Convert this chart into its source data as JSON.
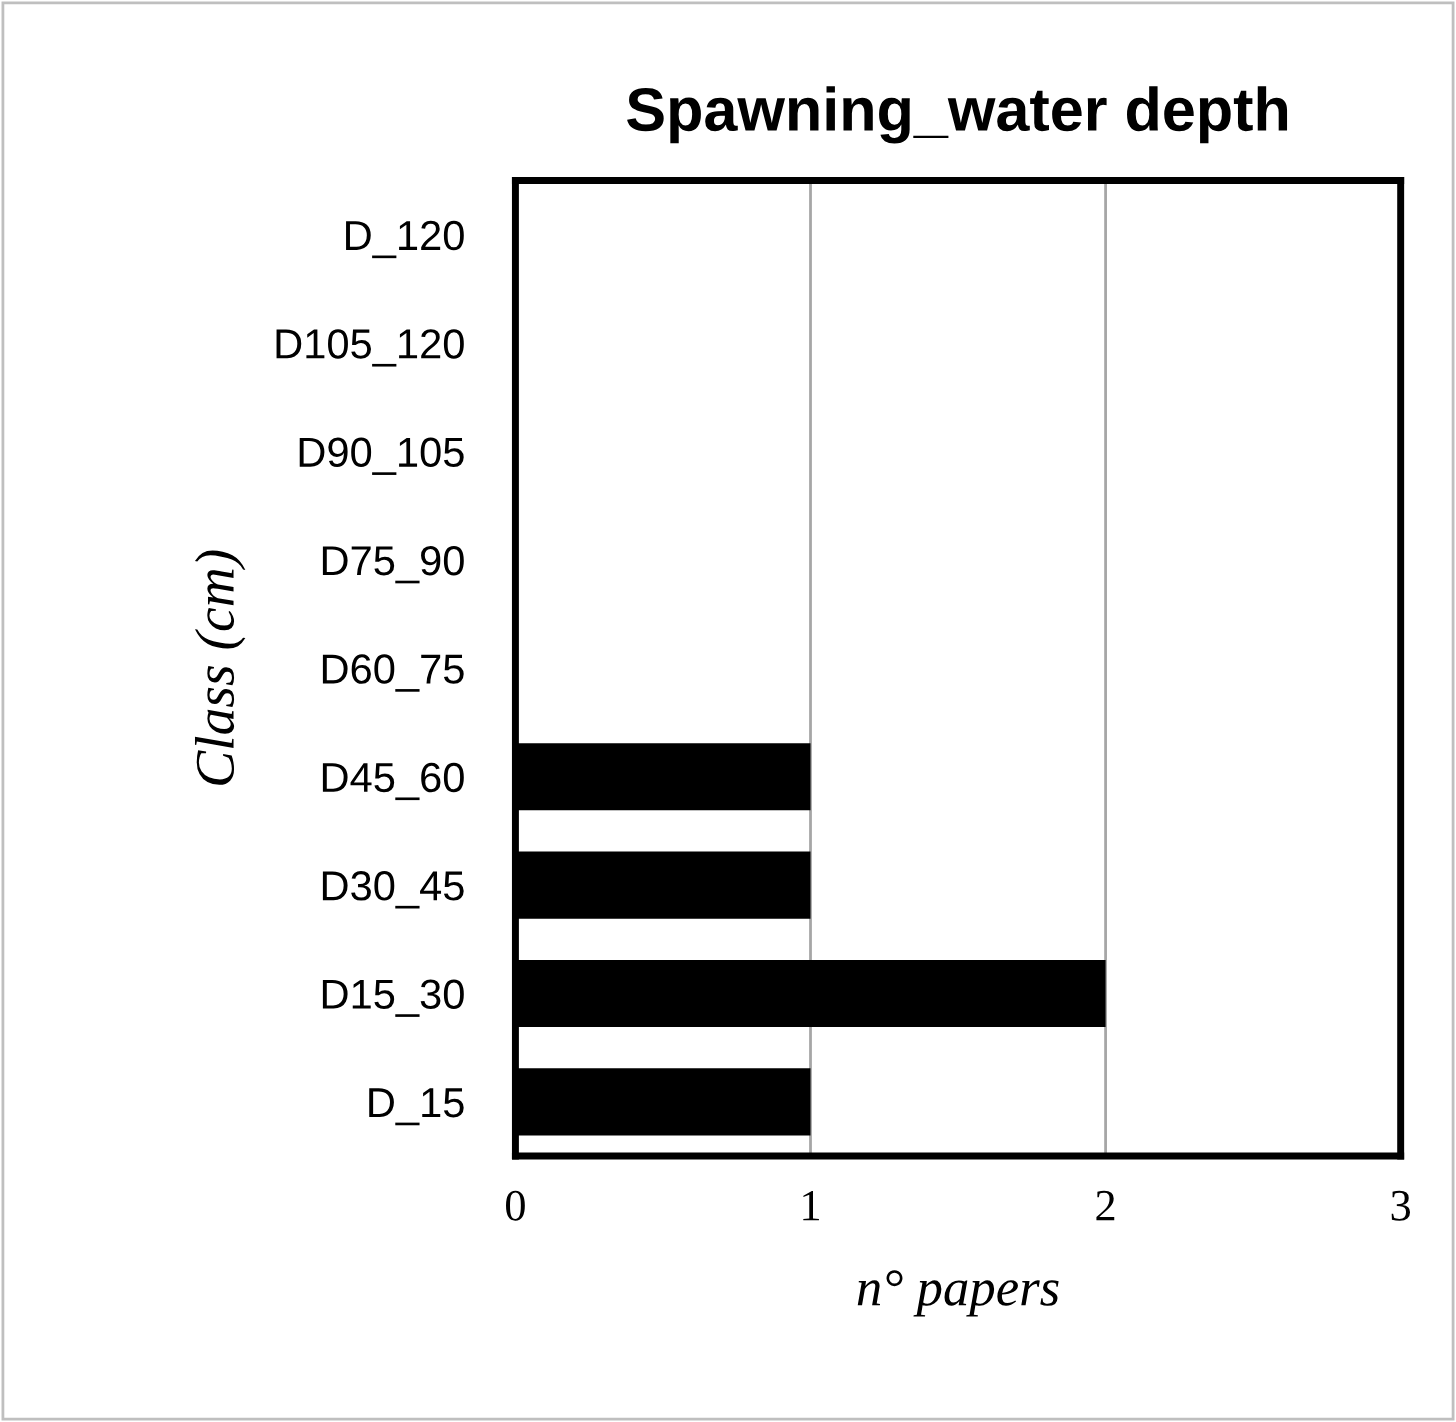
{
  "chart_data": {
    "type": "bar",
    "orientation": "horizontal",
    "title": "Spawning_water depth",
    "xlabel": "n° papers",
    "ylabel": "Class (cm)",
    "categories": [
      "D_120",
      "D105_120",
      "D90_105",
      "D75_90",
      "D60_75",
      "D45_60",
      "D30_45",
      "D15_30",
      "D_15"
    ],
    "values": [
      0,
      0,
      0,
      0,
      0,
      1,
      1,
      2,
      1
    ],
    "color": "#000000",
    "xlim": [
      0,
      3
    ],
    "xticks": [
      0,
      1,
      2,
      3
    ],
    "grid": "x",
    "legend": false
  }
}
